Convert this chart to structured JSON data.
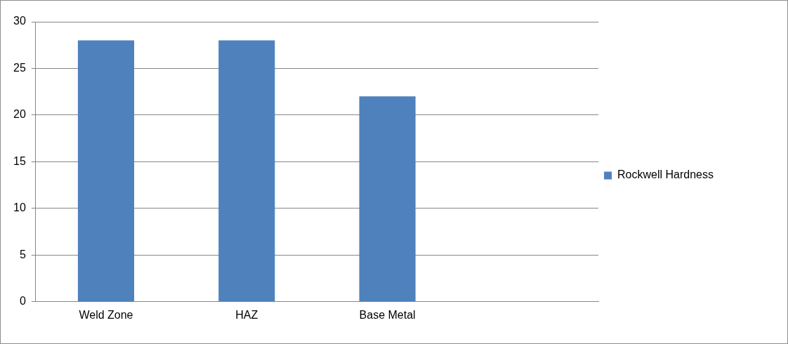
{
  "chart_data": {
    "type": "bar",
    "categories": [
      "Weld Zone",
      "HAZ",
      "Base Metal",
      null
    ],
    "series": [
      {
        "name": "Rockwell Hardness",
        "color": "#4f81bd",
        "values": [
          28,
          28,
          22,
          null
        ]
      }
    ],
    "ylim": [
      0,
      30
    ],
    "yticks": [
      0,
      5,
      10,
      15,
      20,
      25,
      30
    ],
    "grid": "y",
    "legend": "right"
  }
}
